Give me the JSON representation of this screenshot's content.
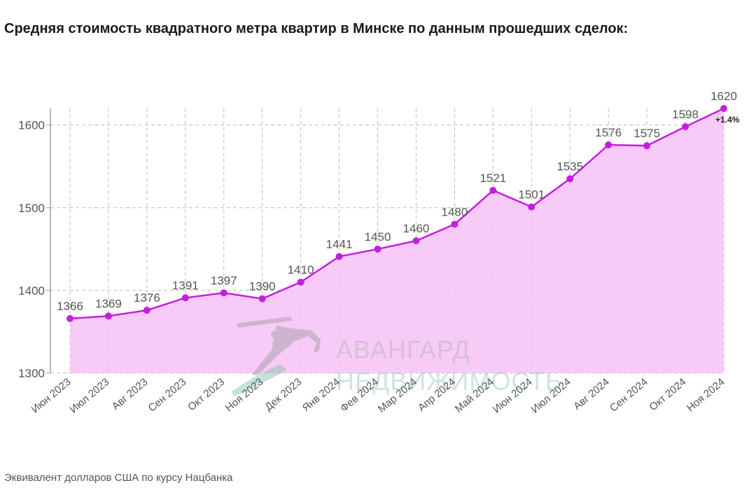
{
  "title": "Средняя стоимость квадратного метра квартир в Минске по данным прошедших сделок:",
  "footnote": "Эквивалент долларов США по курсу Нацбанка",
  "watermark": {
    "line1": "АВАНГАРД",
    "line2": "НЕДВИЖИМОСТЬ"
  },
  "colors": {
    "line": "#c21fe0",
    "fill": "#f7c4f7",
    "grid": "#bdbdbd",
    "axis": "#9e9e9e"
  },
  "chart_data": {
    "type": "area",
    "title": "Средняя стоимость квадратного метра квартир в Минске по данным прошедших сделок:",
    "xlabel": "",
    "ylabel": "",
    "categories": [
      "Июн 2023",
      "Июл 2023",
      "Авг 2023",
      "Сен 2023",
      "Окт 2023",
      "Ноя 2023",
      "Дек 2023",
      "Янв 2024",
      "Фев 2024",
      "Мар 2024",
      "Апр 2024",
      "Май 2024",
      "Июн 2024",
      "Июл 2024",
      "Авг 2024",
      "Сен 2024",
      "Окт 2024",
      "Ноя 2024"
    ],
    "values": [
      1366,
      1369,
      1376,
      1391,
      1397,
      1390,
      1410,
      1441,
      1450,
      1460,
      1480,
      1521,
      1501,
      1535,
      1576,
      1575,
      1598,
      1620
    ],
    "ylim": [
      1300,
      1620
    ],
    "yticks": [
      1300,
      1400,
      1500,
      1600
    ],
    "grid": true,
    "annotation": "+1.4%"
  }
}
